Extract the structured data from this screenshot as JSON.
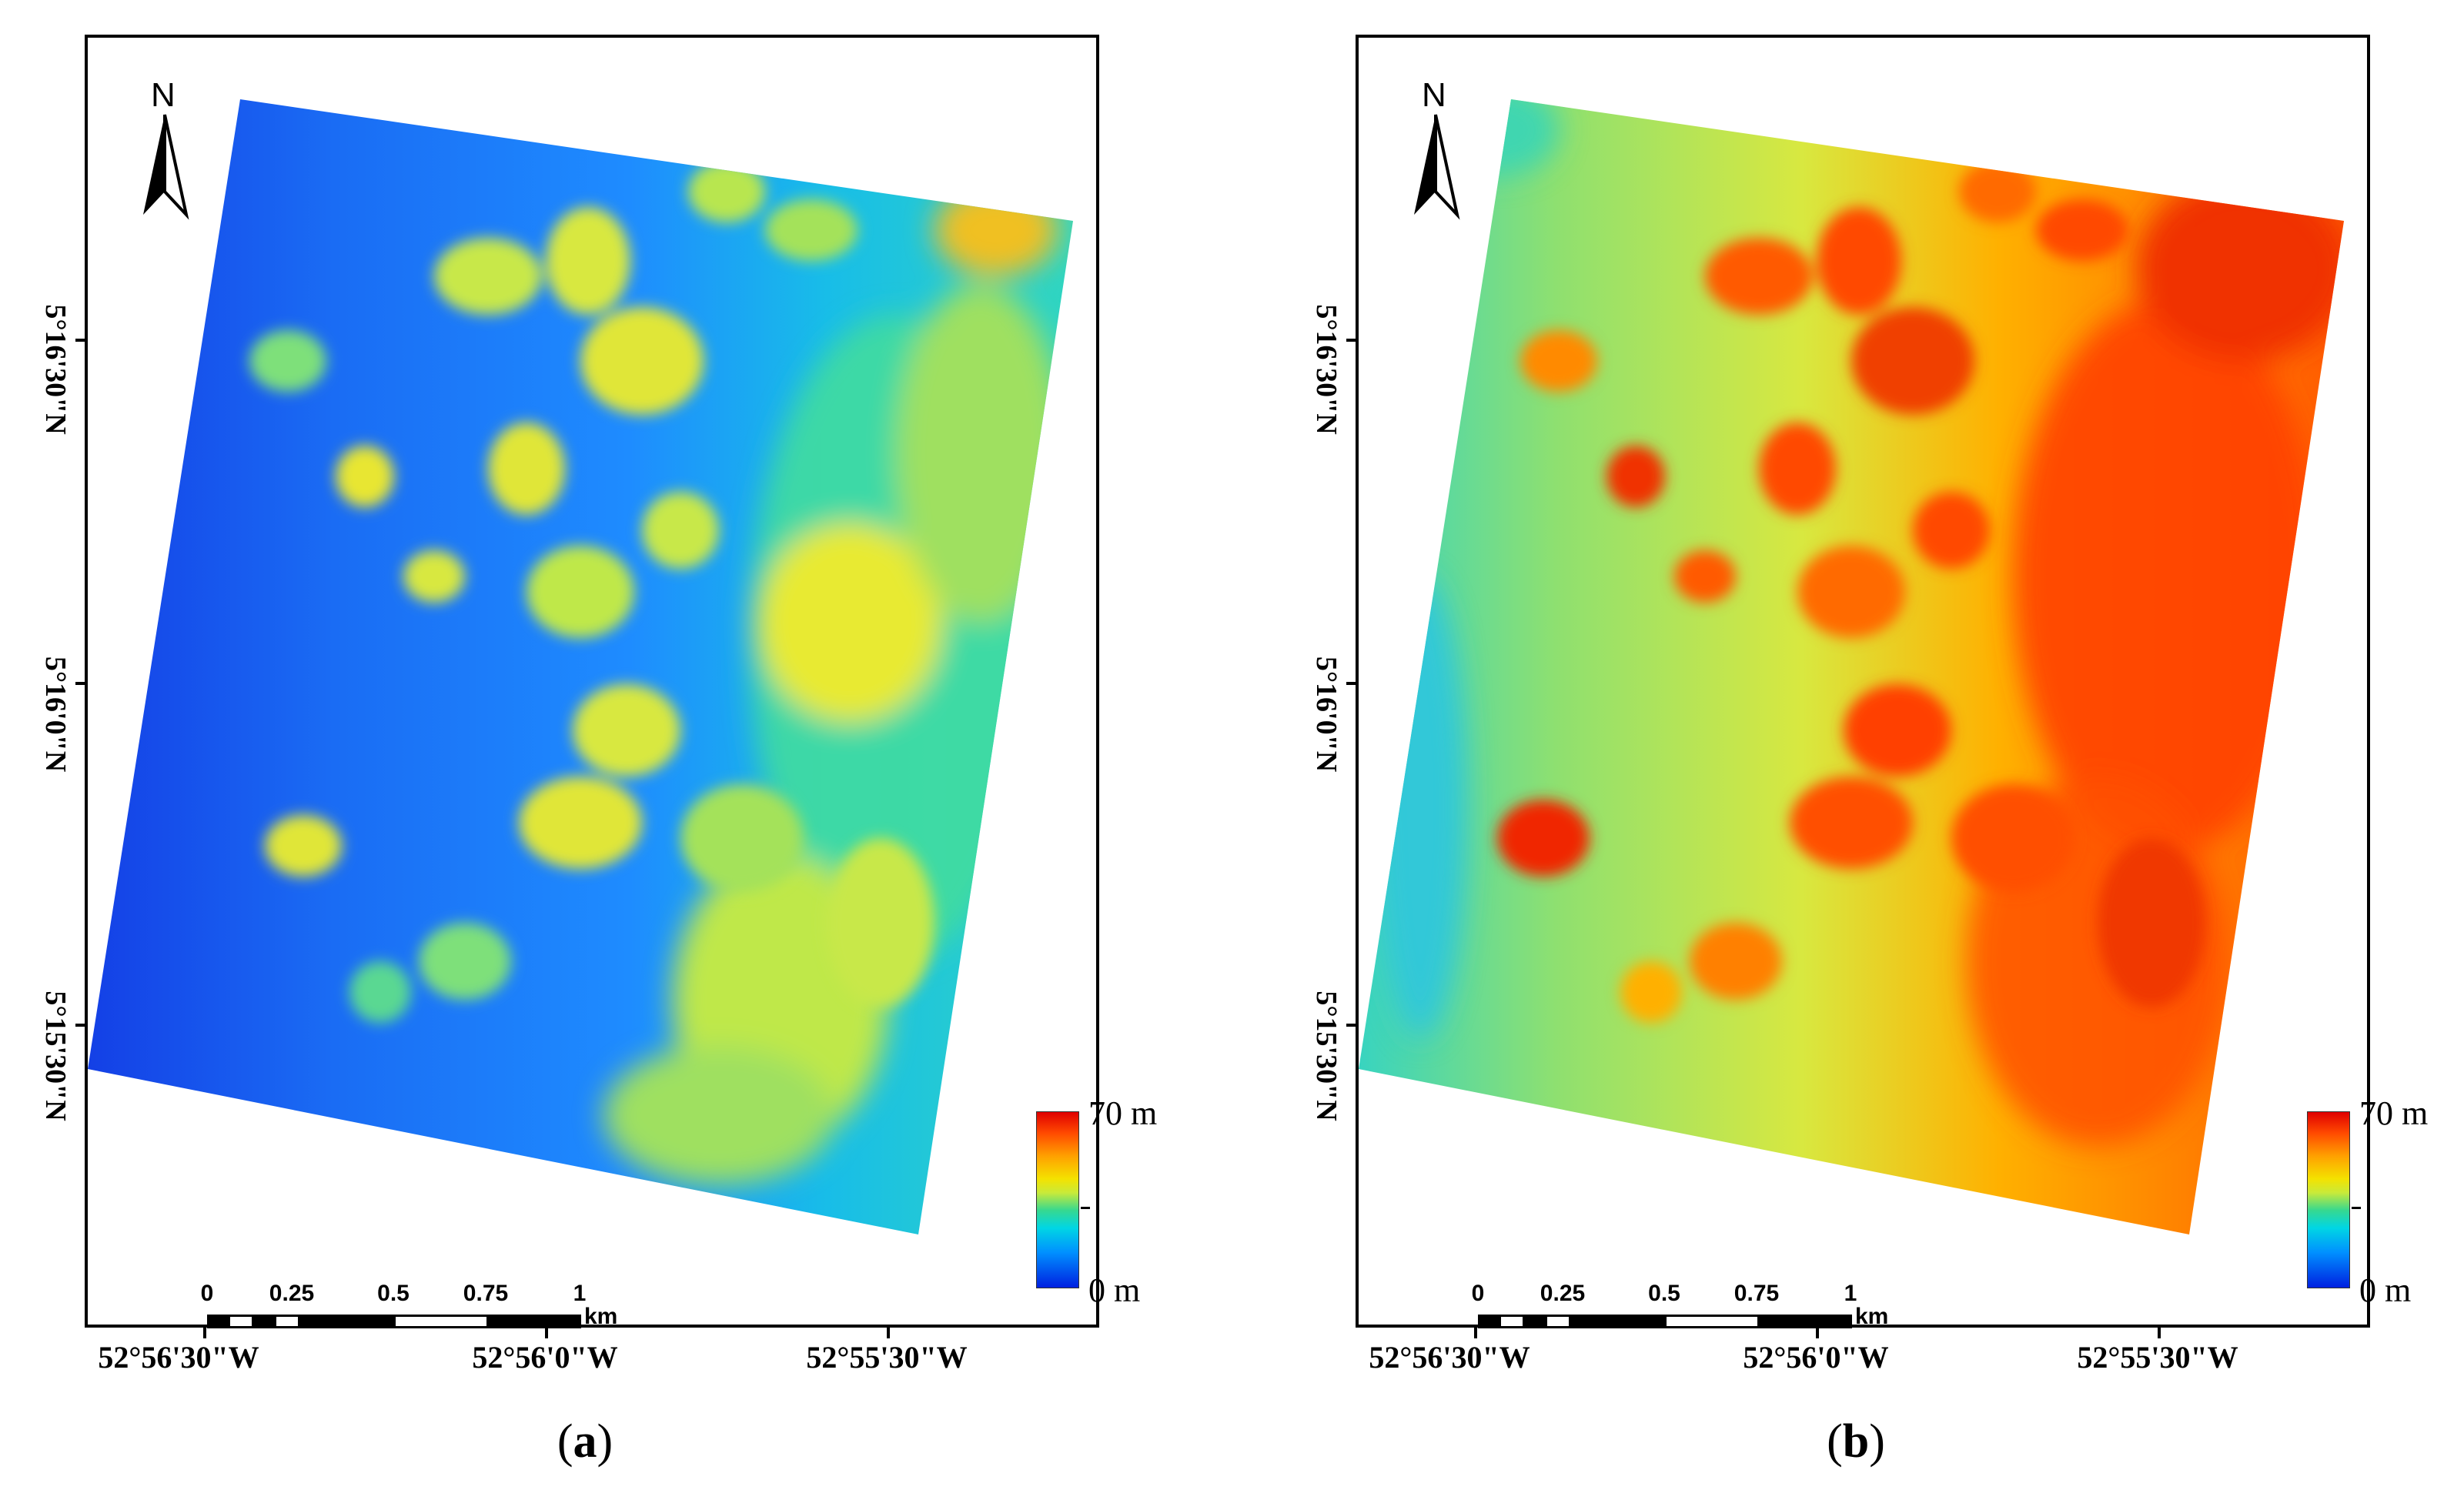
{
  "figure": {
    "panels": [
      {
        "id": "a",
        "caption_open": "(",
        "caption_letter": "a",
        "caption_close": ")",
        "north_label": "N",
        "lat_labels": [
          "5°16'30\"N",
          "5°16'0\"N",
          "5°15'30\"N"
        ],
        "lon_labels": [
          "52°56'30\"W",
          "52°56'0\"W",
          "52°55'30\"W"
        ],
        "scale": {
          "ticks": [
            "0",
            "0.25",
            "0.5",
            "0.75",
            "1"
          ],
          "unit": "km"
        },
        "legend": {
          "max_label": "70 m",
          "min_label": "0 m"
        },
        "dominant_palette": [
          "#1a5cf0",
          "#2a8cff",
          "#10c8e8",
          "#36dca0",
          "#bfe848",
          "#f0e82a"
        ],
        "description_height_level": "low"
      },
      {
        "id": "b",
        "caption_open": "(",
        "caption_letter": "b",
        "caption_close": ")",
        "north_label": "N",
        "lat_labels": [
          "5°16'30\"N",
          "5°16'0\"N",
          "5°15'30\"N"
        ],
        "lon_labels": [
          "52°56'30\"W",
          "52°56'0\"W",
          "52°55'30\"W"
        ],
        "scale": {
          "ticks": [
            "0",
            "0.25",
            "0.5",
            "0.75",
            "1"
          ],
          "unit": "km"
        },
        "legend": {
          "max_label": "70 m",
          "min_label": "0 m"
        },
        "dominant_palette": [
          "#2ad0c8",
          "#8ee070",
          "#f0e030",
          "#ffa000",
          "#ff5a00",
          "#e81000"
        ],
        "description_height_level": "high"
      }
    ],
    "colors": {
      "frame": "#000000",
      "background": "#ffffff"
    }
  }
}
